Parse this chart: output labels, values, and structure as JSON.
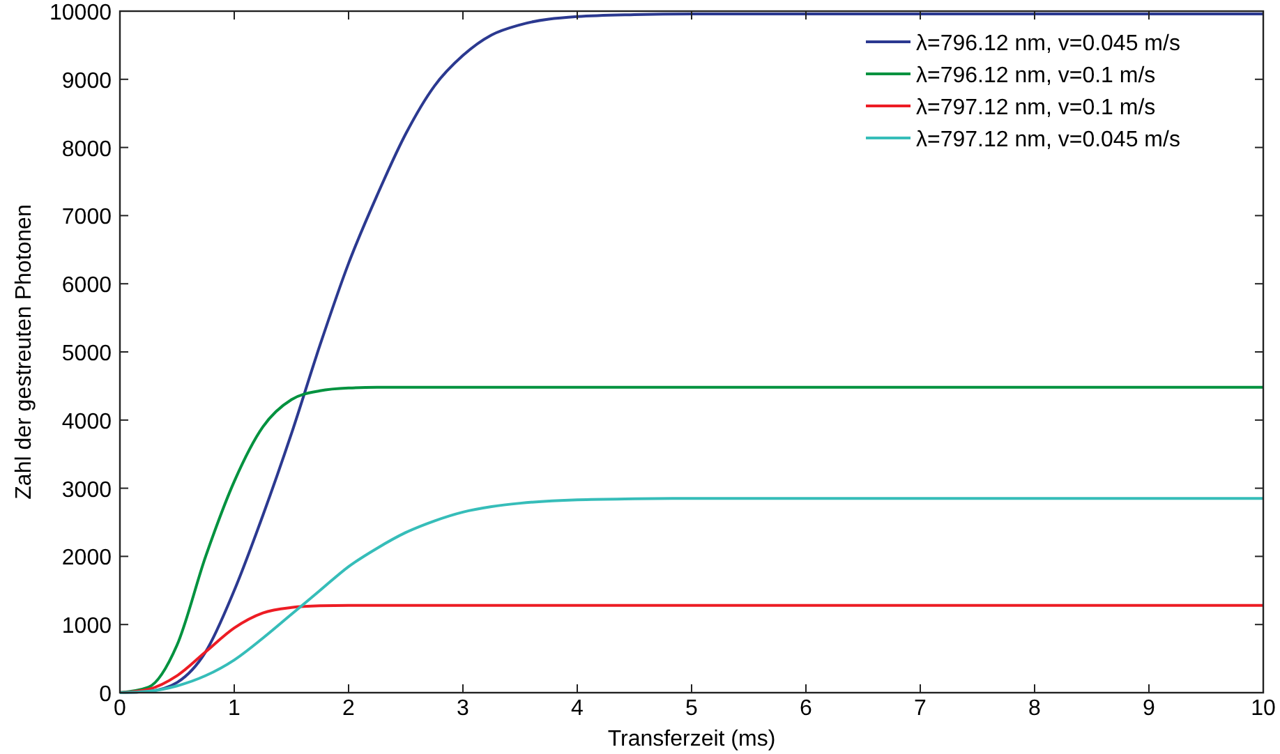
{
  "chart_data": {
    "type": "line",
    "xlabel": "Transferzeit (ms)",
    "ylabel": "Zahl der gestreuten Photonen",
    "x": [
      0,
      0.25,
      0.5,
      0.75,
      1,
      1.25,
      1.5,
      1.75,
      2,
      2.25,
      2.5,
      2.75,
      3,
      3.25,
      3.5,
      4,
      4.5,
      5,
      6,
      7,
      8,
      9,
      10
    ],
    "series": [
      {
        "name": "λ=796.12 nm, v=0.045 m/s",
        "color": "#2b3990",
        "values": [
          0,
          20,
          150,
          600,
          1500,
          2600,
          3800,
          5100,
          6300,
          7300,
          8200,
          8900,
          9350,
          9650,
          9800,
          9920,
          9950,
          9960,
          9960,
          9960,
          9960,
          9960,
          9960
        ]
      },
      {
        "name": "λ=796.12 nm, v=0.1 m/s",
        "color": "#00923f",
        "values": [
          0,
          80,
          700,
          2000,
          3100,
          3900,
          4300,
          4430,
          4470,
          4480,
          4480,
          4480,
          4480,
          4480,
          4480,
          4480,
          4480,
          4480,
          4480,
          4480,
          4480,
          4480,
          4480
        ]
      },
      {
        "name": "λ=797.12 nm, v=0.1 m/s",
        "color": "#ed1c24",
        "values": [
          0,
          50,
          250,
          600,
          950,
          1170,
          1250,
          1275,
          1280,
          1280,
          1280,
          1280,
          1280,
          1280,
          1280,
          1280,
          1280,
          1280,
          1280,
          1280,
          1280,
          1280,
          1280
        ]
      },
      {
        "name": "λ=797.12 nm, v=0.045 m/s",
        "color": "#36bdb9",
        "values": [
          0,
          20,
          100,
          250,
          480,
          800,
          1150,
          1500,
          1850,
          2120,
          2350,
          2520,
          2650,
          2730,
          2780,
          2830,
          2845,
          2850,
          2850,
          2850,
          2850,
          2850,
          2850
        ]
      }
    ],
    "xlim": [
      0,
      10
    ],
    "xticks": [
      0,
      1,
      2,
      3,
      4,
      5,
      6,
      7,
      8,
      9,
      10
    ],
    "ylim": [
      0,
      10000
    ],
    "yticks": [
      0,
      1000,
      2000,
      3000,
      4000,
      5000,
      6000,
      7000,
      8000,
      9000,
      10000
    ],
    "grid": false,
    "legend": "top right"
  }
}
